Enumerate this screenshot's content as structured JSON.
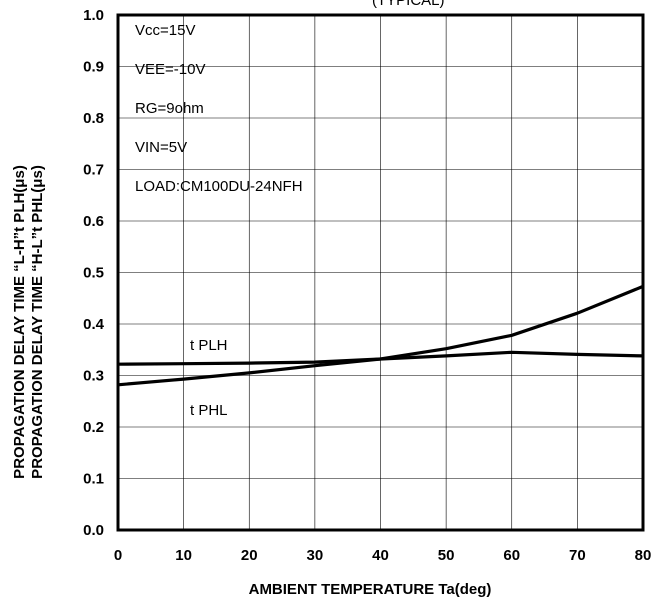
{
  "chart_data": {
    "type": "line",
    "title": "(TYPICAL)",
    "xlabel": "AMBIENT TEMPERATURE  Ta(deg)",
    "ylabel_lines": [
      "PROPAGATION DELAY TIME “L-H”t PLH(μs)",
      "PROPAGATION DELAY TIME “H-L”t PHL(μs)"
    ],
    "xlim": [
      0,
      80
    ],
    "ylim": [
      0.0,
      1.0
    ],
    "x_ticks": [
      0,
      10,
      20,
      30,
      40,
      50,
      60,
      70,
      80
    ],
    "y_ticks": [
      "0.0",
      "0.1",
      "0.2",
      "0.3",
      "0.4",
      "0.5",
      "0.6",
      "0.7",
      "0.8",
      "0.9",
      "1.0"
    ],
    "grid": true,
    "conditions": [
      "Vcc=15V",
      "VEE=-10V",
      "RG=9ohm",
      "VIN=5V",
      "LOAD:CM100DU-24NFH"
    ],
    "series": [
      {
        "name": "t PLH",
        "x": [
          0,
          10,
          20,
          30,
          40,
          50,
          60,
          70,
          80
        ],
        "y": [
          0.322,
          0.323,
          0.324,
          0.326,
          0.332,
          0.338,
          0.345,
          0.341,
          0.338
        ]
      },
      {
        "name": "t PHL",
        "x": [
          0,
          10,
          20,
          30,
          40,
          50,
          60,
          70,
          80
        ],
        "y": [
          0.282,
          0.293,
          0.305,
          0.319,
          0.332,
          0.352,
          0.378,
          0.421,
          0.473
        ]
      }
    ]
  }
}
